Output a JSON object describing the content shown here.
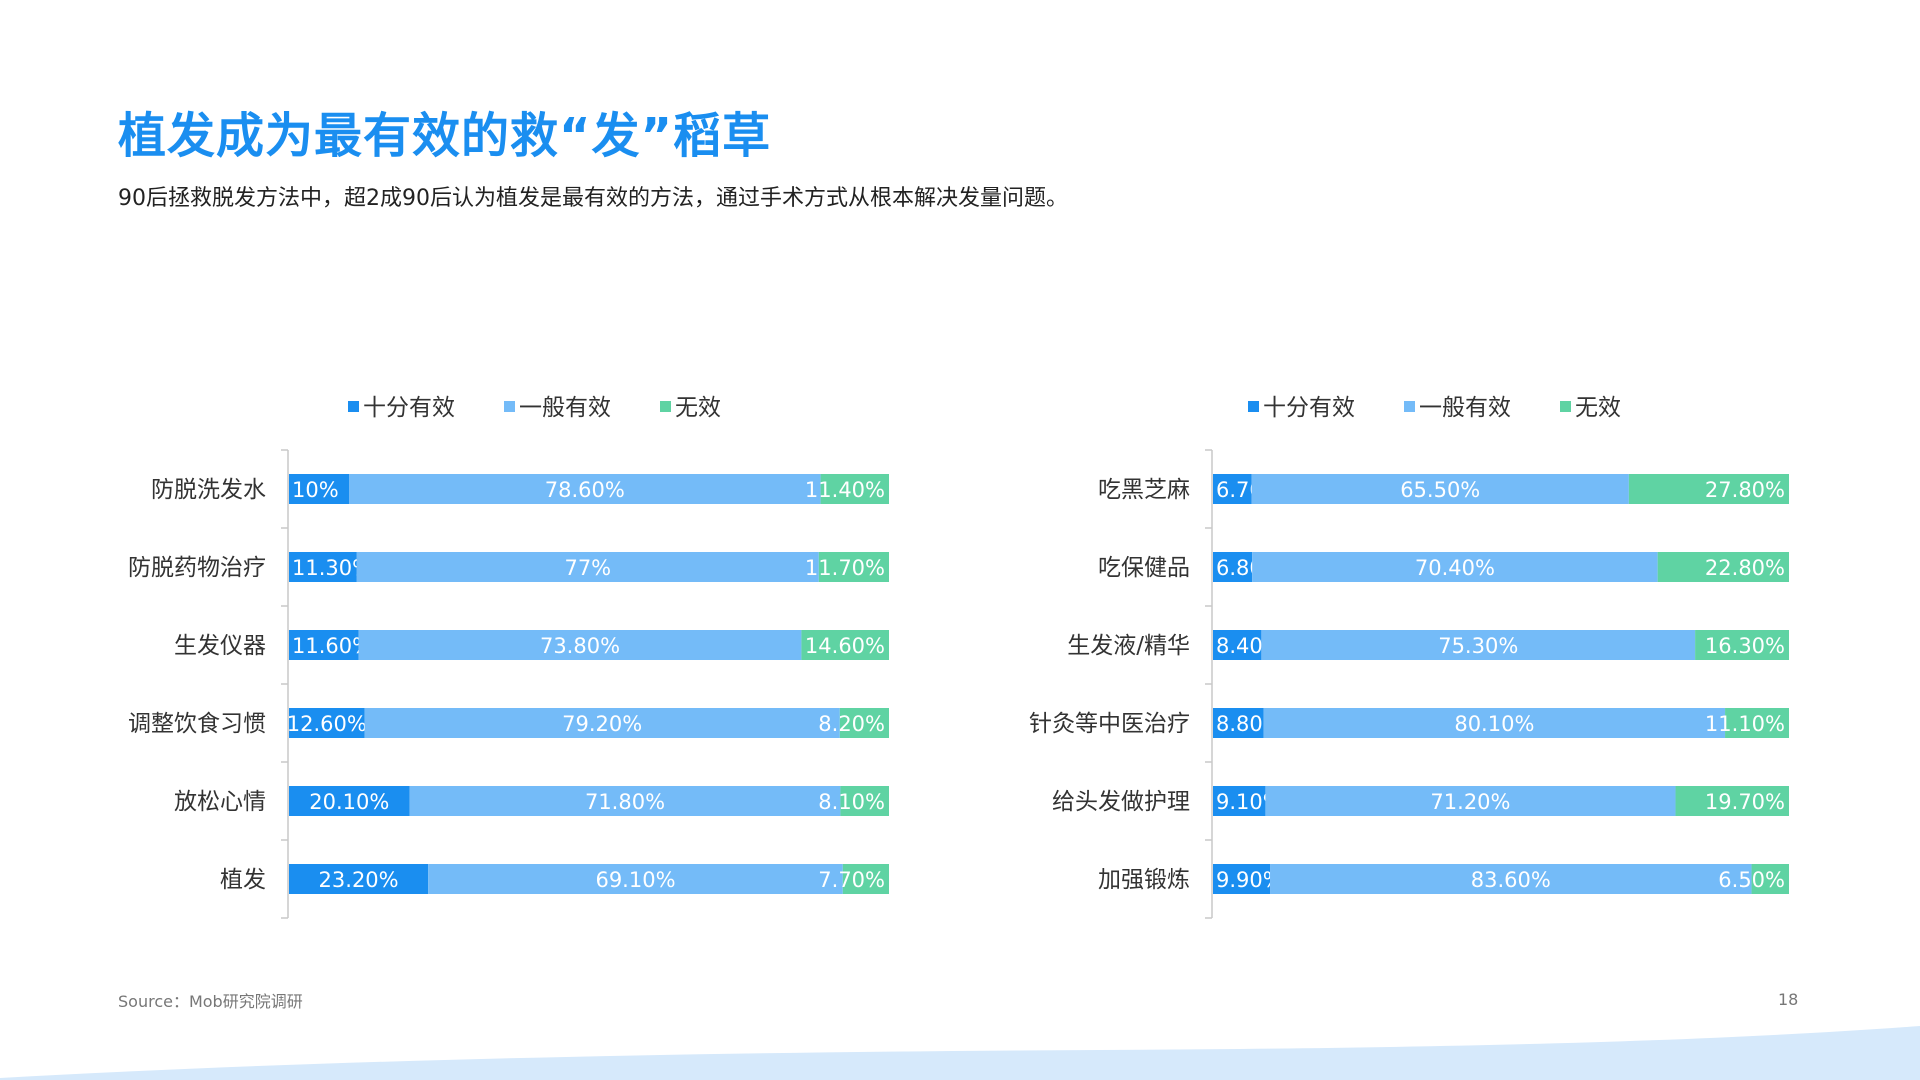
{
  "title": "植发成为最有效的救“发”稻草",
  "subtitle": "90后拯救脱发方法中，超2成90后认为植发是最有效的方法，通过手术方式从根本解决发量问题。",
  "source": "Source：Mob研究院调研",
  "page_number": "18",
  "colors": {
    "s1": "#1a8ef0",
    "s2": "#74bbf8",
    "s3": "#5fd3a3",
    "title": "#1a8ef0",
    "wave": "#d6e9fb"
  },
  "chart_data": [
    {
      "type": "bar",
      "orientation": "horizontal",
      "stacked": true,
      "percent_stacked": true,
      "legend_position": "top",
      "categories": [
        "防脱洗发水",
        "防脱药物治疗",
        "生发仪器",
        "调整饮食习惯",
        "放松心情",
        "植发"
      ],
      "series": [
        {
          "name": "十分有效",
          "values": [
            10,
            11.3,
            11.6,
            12.6,
            20.1,
            23.2
          ],
          "labels": [
            "10%",
            "11.30%",
            "11.60%",
            "12.60%",
            "20.10%",
            "23.20%"
          ]
        },
        {
          "name": "一般有效",
          "values": [
            78.6,
            77,
            73.8,
            79.2,
            71.8,
            69.1
          ],
          "labels": [
            "78.60%",
            "77%",
            "73.80%",
            "79.20%",
            "71.80%",
            "69.10%"
          ]
        },
        {
          "name": "无效",
          "values": [
            11.4,
            11.7,
            14.6,
            8.2,
            8.1,
            7.7
          ],
          "labels": [
            "11.40%",
            "11.70%",
            "14.60%",
            "8.20%",
            "8.10%",
            "7.70%"
          ]
        }
      ]
    },
    {
      "type": "bar",
      "orientation": "horizontal",
      "stacked": true,
      "percent_stacked": true,
      "legend_position": "top",
      "categories": [
        "吃黑芝麻",
        "吃保健品",
        "生发液/精华",
        "针灸等中医治疗",
        "给头发做护理",
        "加强锻炼"
      ],
      "series": [
        {
          "name": "十分有效",
          "values": [
            6.7,
            6.8,
            8.4,
            8.8,
            9.1,
            9.9
          ],
          "labels": [
            "6.70%",
            "6.80%",
            "8.40%",
            "8.80%",
            "9.10%",
            "9.90%"
          ]
        },
        {
          "name": "一般有效",
          "values": [
            65.5,
            70.4,
            75.3,
            80.1,
            71.2,
            83.6
          ],
          "labels": [
            "65.50%",
            "70.40%",
            "75.30%",
            "80.10%",
            "71.20%",
            "83.60%"
          ]
        },
        {
          "name": "无效",
          "values": [
            27.8,
            22.8,
            16.3,
            11.1,
            19.7,
            6.5
          ],
          "labels": [
            "27.80%",
            "22.80%",
            "16.30%",
            "11.10%",
            "19.70%",
            "6.50%"
          ]
        }
      ]
    }
  ]
}
